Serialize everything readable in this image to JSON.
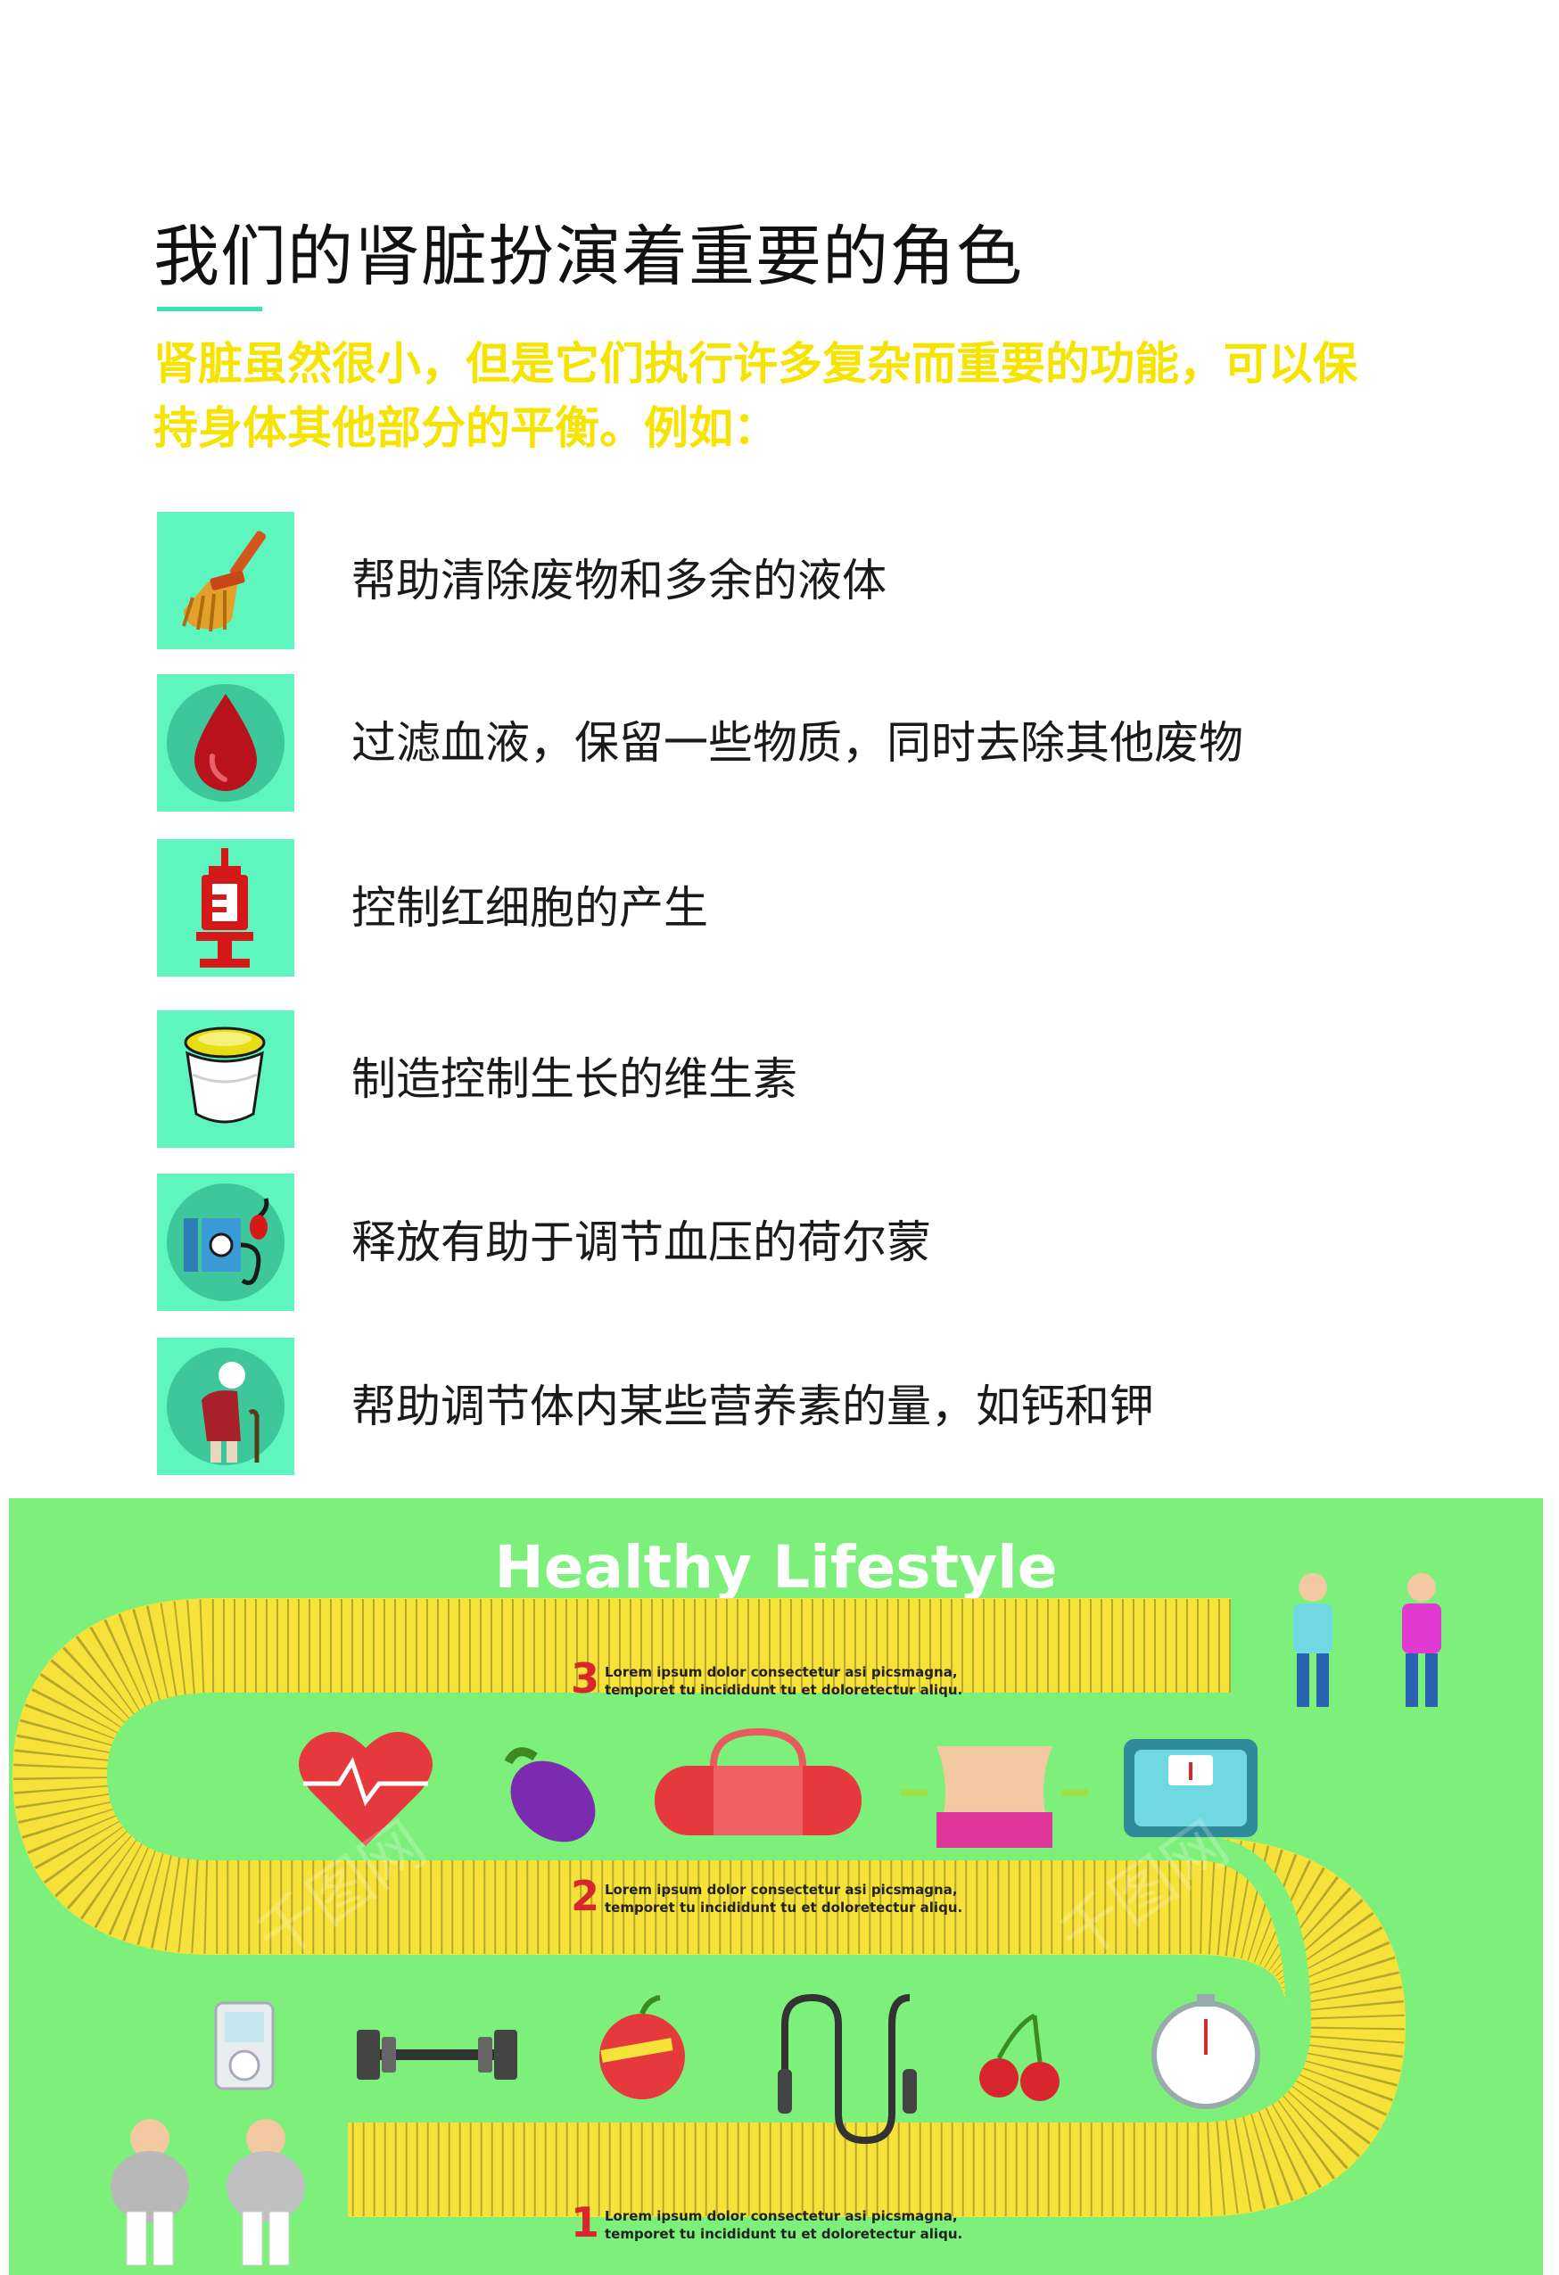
{
  "header": {
    "title": "我们的肾脏扮演着重要的角色",
    "intro_line1": "肾脏虽然很小，但是它们执行许多复杂而重要的功能，可以保",
    "intro_line2": "持身体其他部分的平衡。例如："
  },
  "functions": [
    {
      "label": "帮助清除废物和多余的液体",
      "icon": "broom-icon"
    },
    {
      "label": "过滤血液，保留一些物质，同时去除其他废物",
      "icon": "blood-drop-icon"
    },
    {
      "label": "控制红细胞的产生",
      "icon": "syringe-icon"
    },
    {
      "label": "制造控制生长的维生素",
      "icon": "pill-jar-icon"
    },
    {
      "label": "释放有助于调节血压的荷尔蒙",
      "icon": "blood-pressure-icon"
    },
    {
      "label": "帮助调节体内某些营养素的量，如钙和钾",
      "icon": "elderly-person-icon"
    }
  ],
  "poster": {
    "title": "Healthy Lifestyle",
    "steps": [
      {
        "number": "3",
        "line1": "Lorem ipsum dolor consectetur asi picsmagna,",
        "line2": "temporet tu incididunt tu et doloretectur aliqu."
      },
      {
        "number": "2",
        "line1": "Lorem ipsum dolor consectetur asi picsmagna,",
        "line2": "temporet tu incididunt tu et doloretectur aliqu."
      },
      {
        "number": "1",
        "line1": "Lorem ipsum dolor consectetur asi picsmagna,",
        "line2": "temporet tu incididunt tu et doloretectur aliqu."
      }
    ],
    "watermark": "千图网",
    "colors": {
      "background": "#7cf07a",
      "tape": "#f7e23a",
      "number": "#d9262c",
      "icon_tile": "#5ef5bf",
      "accent_line": "#36e3b4",
      "intro_text": "#f6e400"
    }
  }
}
